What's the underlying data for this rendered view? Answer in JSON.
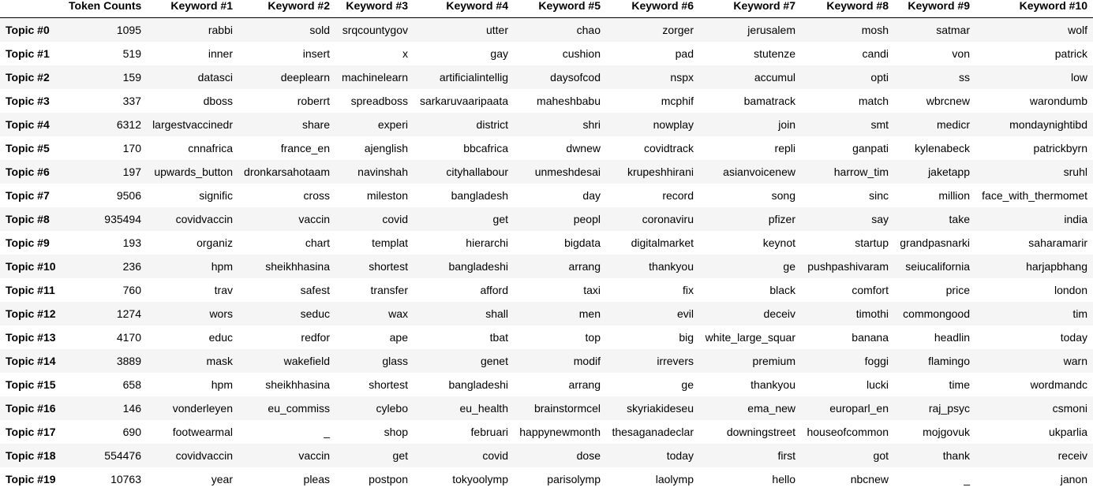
{
  "table": {
    "columns": [
      "",
      "Token Counts",
      "Keyword #1",
      "Keyword #2",
      "Keyword #3",
      "Keyword #4",
      "Keyword #5",
      "Keyword #6",
      "Keyword #7",
      "Keyword #8",
      "Keyword #9",
      "Keyword #10"
    ],
    "rows": [
      [
        "Topic #0",
        "1095",
        "rabbi",
        "sold",
        "srqcountygov",
        "utter",
        "chao",
        "zorger",
        "jerusalem",
        "mosh",
        "satmar",
        "wolf"
      ],
      [
        "Topic #1",
        "519",
        "inner",
        "insert",
        "x",
        "gay",
        "cushion",
        "pad",
        "stutenze",
        "candi",
        "von",
        "patrick"
      ],
      [
        "Topic #2",
        "159",
        "datasci",
        "deeplearn",
        "machinelearn",
        "artificialintellig",
        "daysofcod",
        "nspx",
        "accumul",
        "opti",
        "ss",
        "low"
      ],
      [
        "Topic #3",
        "337",
        "dboss",
        "roberrt",
        "spreadboss",
        "sarkaruvaaripaata",
        "maheshbabu",
        "mcphif",
        "bamatrack",
        "match",
        "wbrcnew",
        "warondumb"
      ],
      [
        "Topic #4",
        "6312",
        "largestvaccinedr",
        "share",
        "experi",
        "district",
        "shri",
        "nowplay",
        "join",
        "smt",
        "medicr",
        "mondaynightibd"
      ],
      [
        "Topic #5",
        "170",
        "cnnafrica",
        "france_en",
        "ajenglish",
        "bbcafrica",
        "dwnew",
        "covidtrack",
        "repli",
        "ganpati",
        "kylenabeck",
        "patrickbyrn"
      ],
      [
        "Topic #6",
        "197",
        "upwards_button",
        "dronkarsahotaam",
        "navinshah",
        "cityhallabour",
        "unmeshdesai",
        "krupeshhirani",
        "asianvoicenew",
        "harrow_tim",
        "jaketapp",
        "sruhl"
      ],
      [
        "Topic #7",
        "9506",
        "signific",
        "cross",
        "mileston",
        "bangladesh",
        "day",
        "record",
        "song",
        "sinc",
        "million",
        "face_with_thermomet"
      ],
      [
        "Topic #8",
        "935494",
        "covidvaccin",
        "vaccin",
        "covid",
        "get",
        "peopl",
        "coronaviru",
        "pfizer",
        "say",
        "take",
        "india"
      ],
      [
        "Topic #9",
        "193",
        "organiz",
        "chart",
        "templat",
        "hierarchi",
        "bigdata",
        "digitalmarket",
        "keynot",
        "startup",
        "grandpasnarki",
        "saharamarir"
      ],
      [
        "Topic #10",
        "236",
        "hpm",
        "sheikhhasina",
        "shortest",
        "bangladeshi",
        "arrang",
        "thankyou",
        "ge",
        "pushpashivaram",
        "seiucalifornia",
        "harjapbhang"
      ],
      [
        "Topic #11",
        "760",
        "trav",
        "safest",
        "transfer",
        "afford",
        "taxi",
        "fix",
        "black",
        "comfort",
        "price",
        "london"
      ],
      [
        "Topic #12",
        "1274",
        "wors",
        "seduc",
        "wax",
        "shall",
        "men",
        "evil",
        "deceiv",
        "timothi",
        "commongood",
        "tim"
      ],
      [
        "Topic #13",
        "4170",
        "educ",
        "redfor",
        "ape",
        "tbat",
        "top",
        "big",
        "white_large_squar",
        "banana",
        "headlin",
        "today"
      ],
      [
        "Topic #14",
        "3889",
        "mask",
        "wakefield",
        "glass",
        "genet",
        "modif",
        "irrevers",
        "premium",
        "foggi",
        "flamingo",
        "warn"
      ],
      [
        "Topic #15",
        "658",
        "hpm",
        "sheikhhasina",
        "shortest",
        "bangladeshi",
        "arrang",
        "ge",
        "thankyou",
        "lucki",
        "time",
        "wordmandc"
      ],
      [
        "Topic #16",
        "146",
        "vonderleyen",
        "eu_commiss",
        "cylebo",
        "eu_health",
        "brainstormcel",
        "skyriakideseu",
        "ema_new",
        "europarl_en",
        "raj_psyc",
        "csmoni"
      ],
      [
        "Topic #17",
        "690",
        "footwearmal",
        "_",
        "shop",
        "februari",
        "happynewmonth",
        "thesaganadeclar",
        "downingstreet",
        "houseofcommon",
        "mojgovuk",
        "ukparlia"
      ],
      [
        "Topic #18",
        "554476",
        "covidvaccin",
        "vaccin",
        "get",
        "covid",
        "dose",
        "today",
        "first",
        "got",
        "thank",
        "receiv"
      ],
      [
        "Topic #19",
        "10763",
        "year",
        "pleas",
        "postpon",
        "tokyoolymp",
        "parisolymp",
        "laolymp",
        "hello",
        "nbcnew",
        "_",
        "janon"
      ]
    ]
  }
}
